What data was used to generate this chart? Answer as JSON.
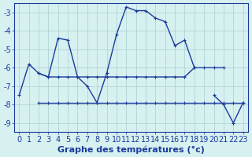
{
  "xlabel": "Graphe des températures (°c)",
  "x": [
    0,
    1,
    2,
    3,
    4,
    5,
    6,
    7,
    8,
    9,
    10,
    11,
    12,
    13,
    14,
    15,
    16,
    17,
    18,
    19,
    20,
    21,
    22,
    23
  ],
  "line_arc": [
    -7.5,
    -5.8,
    -6.3,
    -6.5,
    -4.4,
    -4.5,
    -6.5,
    -7.0,
    -7.9,
    -6.3,
    -4.2,
    -2.7,
    -2.9,
    -2.9,
    -3.3,
    -3.5,
    -4.8,
    -4.5,
    -6.0,
    null,
    null,
    null,
    null,
    null
  ],
  "line_flat_upper": [
    null,
    null,
    -6.3,
    -6.5,
    -6.5,
    -6.5,
    -6.5,
    -6.5,
    -6.5,
    -6.5,
    -6.5,
    -6.5,
    -6.5,
    -6.5,
    -6.5,
    -6.5,
    -6.5,
    -6.5,
    -6.0,
    -6.0,
    -6.0,
    -6.0,
    null,
    null
  ],
  "line_flat_lower": [
    null,
    null,
    -7.9,
    -7.9,
    -7.9,
    -7.9,
    -7.9,
    -7.9,
    -7.9,
    -7.9,
    -7.9,
    -7.9,
    -7.9,
    -7.9,
    -7.9,
    -7.9,
    -7.9,
    -7.9,
    -7.9,
    -7.9,
    -7.9,
    -7.9,
    -7.9,
    -7.9
  ],
  "line_v_shape": [
    null,
    null,
    null,
    null,
    null,
    null,
    null,
    null,
    null,
    null,
    null,
    null,
    null,
    null,
    null,
    null,
    null,
    null,
    null,
    null,
    -7.5,
    -8.0,
    -9.0,
    -7.9
  ],
  "bg_color": "#d7f0f0",
  "grid_color": "#a8d0d0",
  "line_color": "#1a3a9c",
  "ylim": [
    -9.5,
    -2.5
  ],
  "xlim": [
    -0.5,
    23.5
  ],
  "yticks": [
    -9,
    -8,
    -7,
    -6,
    -5,
    -4,
    -3
  ],
  "xticks": [
    0,
    1,
    2,
    3,
    4,
    5,
    6,
    7,
    8,
    9,
    10,
    11,
    12,
    13,
    14,
    15,
    16,
    17,
    18,
    19,
    20,
    21,
    22,
    23
  ],
  "tick_fontsize": 7,
  "xlabel_fontsize": 8
}
